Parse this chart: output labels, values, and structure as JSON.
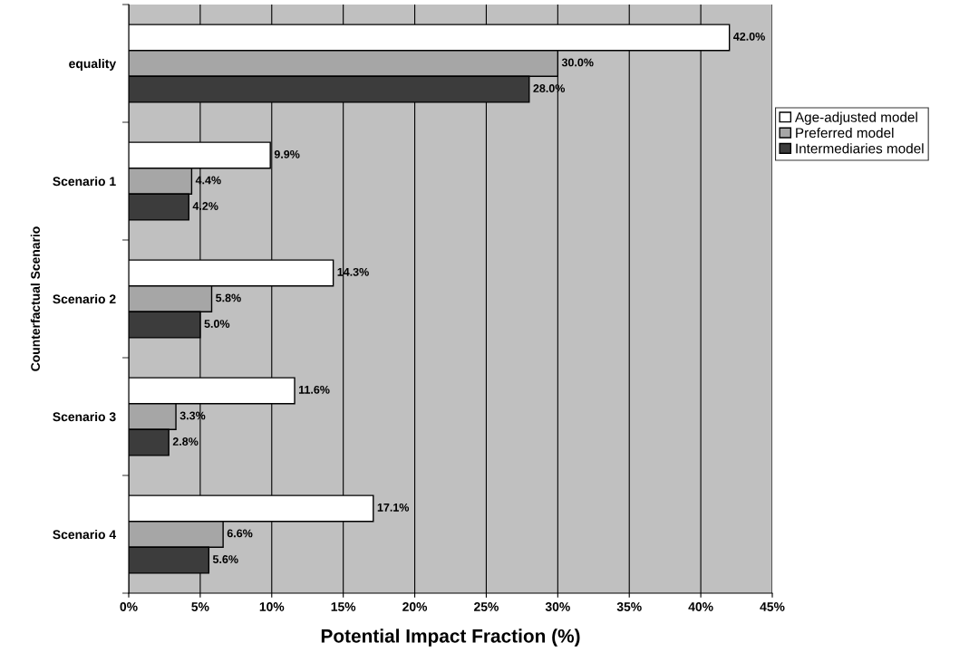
{
  "chart_data": {
    "type": "bar",
    "orientation": "horizontal",
    "xlabel": "Potential Impact Fraction (%)",
    "ylabel": "Counterfactual Scenario",
    "categories": [
      "equality",
      "Scenario 1",
      "Scenario 2",
      "Scenario 3",
      "Scenario 4"
    ],
    "series": [
      {
        "name": "Age-adjusted model",
        "color": "#ffffff",
        "values": [
          42.0,
          9.9,
          14.3,
          11.6,
          17.1
        ],
        "value_labels": [
          "42.0%",
          "9.9%",
          "14.3%",
          "11.6%",
          "17.1%"
        ]
      },
      {
        "name": "Preferred model",
        "color": "#a6a6a6",
        "values": [
          30.0,
          4.4,
          5.8,
          3.3,
          6.6
        ],
        "value_labels": [
          "30.0%",
          "4.4%",
          "5.8%",
          "3.3%",
          "6.6%"
        ]
      },
      {
        "name": "Intermediaries model",
        "color": "#3c3c3c",
        "values": [
          28.0,
          4.2,
          5.0,
          2.8,
          5.6
        ],
        "value_labels": [
          "28.0%",
          "4.2%",
          "5.0%",
          "2.8%",
          "5.6%"
        ]
      }
    ],
    "xlim": [
      0,
      45
    ],
    "xticks": [
      {
        "value": 0,
        "label": "0%"
      },
      {
        "value": 5,
        "label": "5%"
      },
      {
        "value": 10,
        "label": "10%"
      },
      {
        "value": 15,
        "label": "15%"
      },
      {
        "value": 20,
        "label": "20%"
      },
      {
        "value": 25,
        "label": "25%"
      },
      {
        "value": 30,
        "label": "30%"
      },
      {
        "value": 35,
        "label": "35%"
      },
      {
        "value": 40,
        "label": "40%"
      },
      {
        "value": 45,
        "label": "45%"
      }
    ],
    "grid": "x",
    "legend": "right"
  }
}
